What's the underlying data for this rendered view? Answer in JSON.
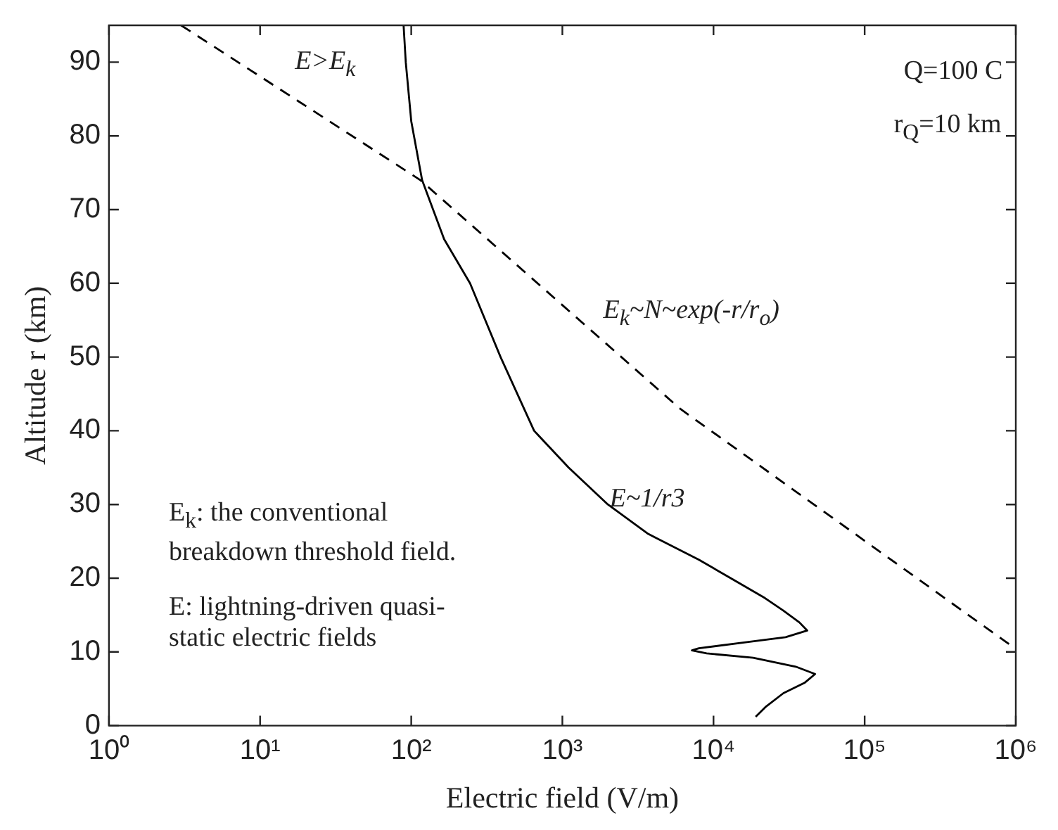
{
  "chart_data": {
    "type": "line",
    "xlabel": "Electric field (V/m)",
    "ylabel": "Altitude r (km)",
    "log": "x",
    "grid": false,
    "legend": false,
    "marker": "none",
    "xlim": [
      1,
      1000000
    ],
    "ylim": [
      0,
      95
    ],
    "xticks": [
      {
        "value": 1,
        "label": "10⁰"
      },
      {
        "value": 10,
        "label": "10¹"
      },
      {
        "value": 100,
        "label": "10²"
      },
      {
        "value": 1000,
        "label": "10³"
      },
      {
        "value": 10000,
        "label": "10⁴"
      },
      {
        "value": 100000,
        "label": "10⁵"
      },
      {
        "value": 1000000,
        "label": "10⁶"
      }
    ],
    "yticks": [
      0,
      10,
      20,
      30,
      40,
      50,
      60,
      70,
      80,
      90
    ],
    "series": [
      {
        "color": "#000000",
        "line_style": "solid",
        "x": [
          89,
          92,
          100,
          118,
          165,
          245,
          390,
          650,
          1100,
          2000,
          3700,
          8000,
          13000,
          21900,
          29000,
          37000,
          41700,
          30000,
          15000,
          8000,
          7200,
          9000,
          18300,
          35000,
          47000,
          40000,
          29000,
          22000,
          19000
        ],
        "values": [
          95,
          90,
          82,
          74,
          66,
          60,
          50,
          40,
          35,
          30,
          26,
          22.5,
          20,
          17.3,
          15.6,
          14,
          12.9,
          12,
          11.2,
          10.5,
          10.2,
          9.8,
          9.2,
          8,
          7,
          5.8,
          4.4,
          2.5,
          1.2
        ]
      },
      {
        "color": "#000000",
        "line_style": "dashed",
        "x": [
          3,
          115,
          6000,
          1000000
        ],
        "values": [
          95,
          74,
          43,
          10.4
        ]
      }
    ],
    "annotations": [
      "E>E$_{k}$",
      "E$_{k}$~N~exp(-r/r$_{o}$)",
      "E~1/r3",
      "Q=100 C",
      "r$_{Q}$=10 km",
      "E$_{k}$: the conventional breakdown threshold field.",
      "E: lightning-driven quasi-static electric fields"
    ]
  }
}
